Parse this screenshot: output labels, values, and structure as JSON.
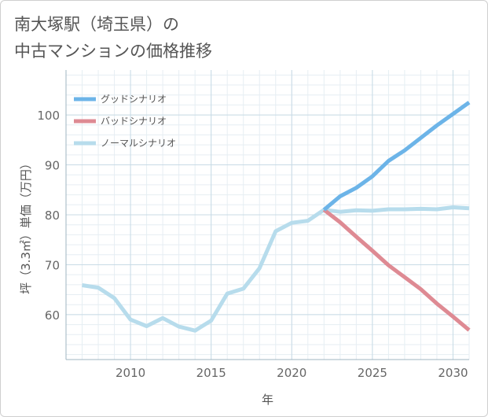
{
  "title_line1": "南大塚駅（埼玉県）の",
  "title_line2": "中古マンションの価格推移",
  "chart_data": {
    "type": "line",
    "title": "南大塚駅（埼玉県）の中古マンションの価格推移",
    "xlabel": "年",
    "ylabel": "坪（3.3㎡）単価（万円）",
    "xlim": [
      2006,
      2031
    ],
    "ylim": [
      51,
      109
    ],
    "xticks": [
      2010,
      2015,
      2020,
      2025,
      2030
    ],
    "yticks": [
      60,
      70,
      80,
      90,
      100
    ],
    "grid": true,
    "legend_position": "top-left",
    "series": [
      {
        "name": "グッドシナリオ",
        "color": "#6cb4e8",
        "x": [
          2022,
          2023,
          2024,
          2025,
          2026,
          2027,
          2028,
          2029,
          2030,
          2031
        ],
        "values": [
          81.0,
          83.7,
          85.4,
          87.7,
          90.8,
          92.9,
          95.4,
          97.9,
          100.2,
          102.5
        ]
      },
      {
        "name": "バッドシナリオ",
        "color": "#de8a93",
        "x": [
          2022,
          2023,
          2024,
          2025,
          2026,
          2027,
          2028,
          2029,
          2030,
          2031
        ],
        "values": [
          81.0,
          78.5,
          75.6,
          72.8,
          69.9,
          67.5,
          65.1,
          62.2,
          59.6,
          56.9
        ]
      },
      {
        "name": "ノーマルシナリオ",
        "color": "#b7dcec",
        "x": [
          2007,
          2008,
          2009,
          2010,
          2011,
          2012,
          2013,
          2014,
          2015,
          2016,
          2017,
          2018,
          2019,
          2020,
          2021,
          2022,
          2023,
          2024,
          2025,
          2026,
          2027,
          2028,
          2029,
          2030,
          2031
        ],
        "values": [
          65.9,
          65.4,
          63.3,
          59.0,
          57.7,
          59.3,
          57.6,
          56.8,
          58.8,
          64.2,
          65.2,
          69.3,
          76.7,
          78.4,
          78.8,
          81.0,
          80.6,
          80.9,
          80.8,
          81.1,
          81.1,
          81.2,
          81.1,
          81.5,
          81.3
        ]
      }
    ]
  }
}
